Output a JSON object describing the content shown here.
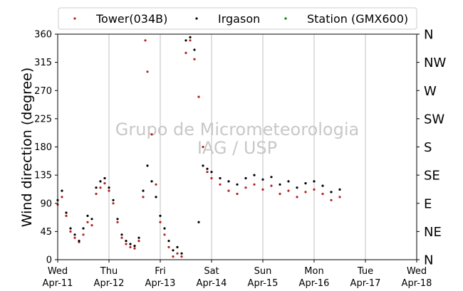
{
  "chart_data": {
    "type": "scatter",
    "ylabel": "Wind direction (degree)",
    "ylim": [
      0,
      360
    ],
    "yticks": [
      0,
      45,
      90,
      135,
      180,
      225,
      270,
      315,
      360
    ],
    "ytick_labels": [
      "0",
      "45",
      "90",
      "135",
      "180",
      "225",
      "270",
      "315",
      "360"
    ],
    "right_labels": [
      "N",
      "NW",
      "W",
      "SW",
      "S",
      "SE",
      "E",
      "NE",
      "N"
    ],
    "right_label_values": [
      360,
      315,
      270,
      225,
      180,
      135,
      90,
      45,
      0
    ],
    "xlim": [
      "2018-04-11",
      "2018-04-18"
    ],
    "x_ticks": [
      {
        "x": "2018-04-11",
        "line1": "Wed",
        "line2": "Apr-11"
      },
      {
        "x": "2018-04-12",
        "line1": "Thu",
        "line2": "Apr-12"
      },
      {
        "x": "2018-04-13",
        "line1": "Fri",
        "line2": "Apr-13"
      },
      {
        "x": "2018-04-14",
        "line1": "Sat",
        "line2": "Apr-14"
      },
      {
        "x": "2018-04-15",
        "line1": "Sun",
        "line2": "Apr-15"
      },
      {
        "x": "2018-04-16",
        "line1": "Mon",
        "line2": "Apr-16"
      },
      {
        "x": "2018-04-17",
        "line1": "Tue",
        "line2": "Apr-17"
      },
      {
        "x": "2018-04-18",
        "line1": "Wed",
        "line2": "Apr-18"
      }
    ],
    "grid": "x",
    "legend_position": "top",
    "watermark": [
      "Grupo de Micrometeorologia",
      "IAG / USP"
    ],
    "series": [
      {
        "name": "Tower(034B)",
        "color": "#b22222",
        "points": [
          [
            "2018-04-11T00:00",
            88
          ],
          [
            "2018-04-11T02:00",
            100
          ],
          [
            "2018-04-11T04:00",
            70
          ],
          [
            "2018-04-11T06:00",
            45
          ],
          [
            "2018-04-11T08:00",
            35
          ],
          [
            "2018-04-11T10:00",
            28
          ],
          [
            "2018-04-11T12:00",
            40
          ],
          [
            "2018-04-11T14:00",
            60
          ],
          [
            "2018-04-11T16:00",
            55
          ],
          [
            "2018-04-11T18:00",
            105
          ],
          [
            "2018-04-11T20:00",
            115
          ],
          [
            "2018-04-11T22:00",
            122
          ],
          [
            "2018-04-12T00:00",
            110
          ],
          [
            "2018-04-12T02:00",
            90
          ],
          [
            "2018-04-12T04:00",
            60
          ],
          [
            "2018-04-12T06:00",
            35
          ],
          [
            "2018-04-12T08:00",
            25
          ],
          [
            "2018-04-12T10:00",
            20
          ],
          [
            "2018-04-12T12:00",
            18
          ],
          [
            "2018-04-12T14:00",
            30
          ],
          [
            "2018-04-12T16:00",
            100
          ],
          [
            "2018-04-12T17:00",
            350
          ],
          [
            "2018-04-12T18:00",
            300
          ],
          [
            "2018-04-12T20:00",
            200
          ],
          [
            "2018-04-12T22:00",
            120
          ],
          [
            "2018-04-13T00:00",
            60
          ],
          [
            "2018-04-13T02:00",
            40
          ],
          [
            "2018-04-13T04:00",
            20
          ],
          [
            "2018-04-13T06:00",
            5
          ],
          [
            "2018-04-13T08:00",
            10
          ],
          [
            "2018-04-13T10:00",
            5
          ],
          [
            "2018-04-13T12:00",
            330
          ],
          [
            "2018-04-13T14:00",
            350
          ],
          [
            "2018-04-13T16:00",
            320
          ],
          [
            "2018-04-13T18:00",
            260
          ],
          [
            "2018-04-13T20:00",
            180
          ],
          [
            "2018-04-13T22:00",
            140
          ],
          [
            "2018-04-14T00:00",
            130
          ],
          [
            "2018-04-14T04:00",
            120
          ],
          [
            "2018-04-14T08:00",
            110
          ],
          [
            "2018-04-14T12:00",
            105
          ],
          [
            "2018-04-14T16:00",
            115
          ],
          [
            "2018-04-14T20:00",
            120
          ],
          [
            "2018-04-15T00:00",
            112
          ],
          [
            "2018-04-15T04:00",
            118
          ],
          [
            "2018-04-15T08:00",
            105
          ],
          [
            "2018-04-15T12:00",
            110
          ],
          [
            "2018-04-15T16:00",
            100
          ],
          [
            "2018-04-15T20:00",
            108
          ],
          [
            "2018-04-16T00:00",
            112
          ],
          [
            "2018-04-16T04:00",
            105
          ],
          [
            "2018-04-16T08:00",
            95
          ],
          [
            "2018-04-16T12:00",
            100
          ]
        ]
      },
      {
        "name": "Irgason",
        "color": "#000000",
        "points": [
          [
            "2018-04-11T00:00",
            95
          ],
          [
            "2018-04-11T02:00",
            110
          ],
          [
            "2018-04-11T04:00",
            75
          ],
          [
            "2018-04-11T06:00",
            50
          ],
          [
            "2018-04-11T08:00",
            40
          ],
          [
            "2018-04-11T10:00",
            30
          ],
          [
            "2018-04-11T12:00",
            50
          ],
          [
            "2018-04-11T14:00",
            70
          ],
          [
            "2018-04-11T16:00",
            65
          ],
          [
            "2018-04-11T18:00",
            115
          ],
          [
            "2018-04-11T20:00",
            125
          ],
          [
            "2018-04-11T22:00",
            130
          ],
          [
            "2018-04-12T00:00",
            115
          ],
          [
            "2018-04-12T02:00",
            95
          ],
          [
            "2018-04-12T04:00",
            65
          ],
          [
            "2018-04-12T06:00",
            40
          ],
          [
            "2018-04-12T08:00",
            30
          ],
          [
            "2018-04-12T10:00",
            25
          ],
          [
            "2018-04-12T12:00",
            22
          ],
          [
            "2018-04-12T14:00",
            35
          ],
          [
            "2018-04-12T16:00",
            110
          ],
          [
            "2018-04-12T18:00",
            150
          ],
          [
            "2018-04-12T20:00",
            125
          ],
          [
            "2018-04-12T22:00",
            100
          ],
          [
            "2018-04-13T00:00",
            70
          ],
          [
            "2018-04-13T02:00",
            50
          ],
          [
            "2018-04-13T04:00",
            30
          ],
          [
            "2018-04-13T06:00",
            15
          ],
          [
            "2018-04-13T08:00",
            20
          ],
          [
            "2018-04-13T10:00",
            10
          ],
          [
            "2018-04-13T12:00",
            350
          ],
          [
            "2018-04-13T14:00",
            355
          ],
          [
            "2018-04-13T16:00",
            335
          ],
          [
            "2018-04-13T18:00",
            60
          ],
          [
            "2018-04-13T20:00",
            150
          ],
          [
            "2018-04-13T22:00",
            145
          ],
          [
            "2018-04-14T00:00",
            140
          ],
          [
            "2018-04-14T04:00",
            130
          ],
          [
            "2018-04-14T08:00",
            125
          ],
          [
            "2018-04-14T12:00",
            120
          ],
          [
            "2018-04-14T16:00",
            130
          ],
          [
            "2018-04-14T20:00",
            135
          ],
          [
            "2018-04-15T00:00",
            128
          ],
          [
            "2018-04-15T04:00",
            132
          ],
          [
            "2018-04-15T08:00",
            120
          ],
          [
            "2018-04-15T12:00",
            125
          ],
          [
            "2018-04-15T16:00",
            115
          ],
          [
            "2018-04-15T20:00",
            122
          ],
          [
            "2018-04-16T00:00",
            125
          ],
          [
            "2018-04-16T04:00",
            118
          ],
          [
            "2018-04-16T08:00",
            108
          ],
          [
            "2018-04-16T12:00",
            112
          ]
        ]
      },
      {
        "name": "Station (GMX600)",
        "color": "#008000",
        "points": []
      }
    ]
  }
}
